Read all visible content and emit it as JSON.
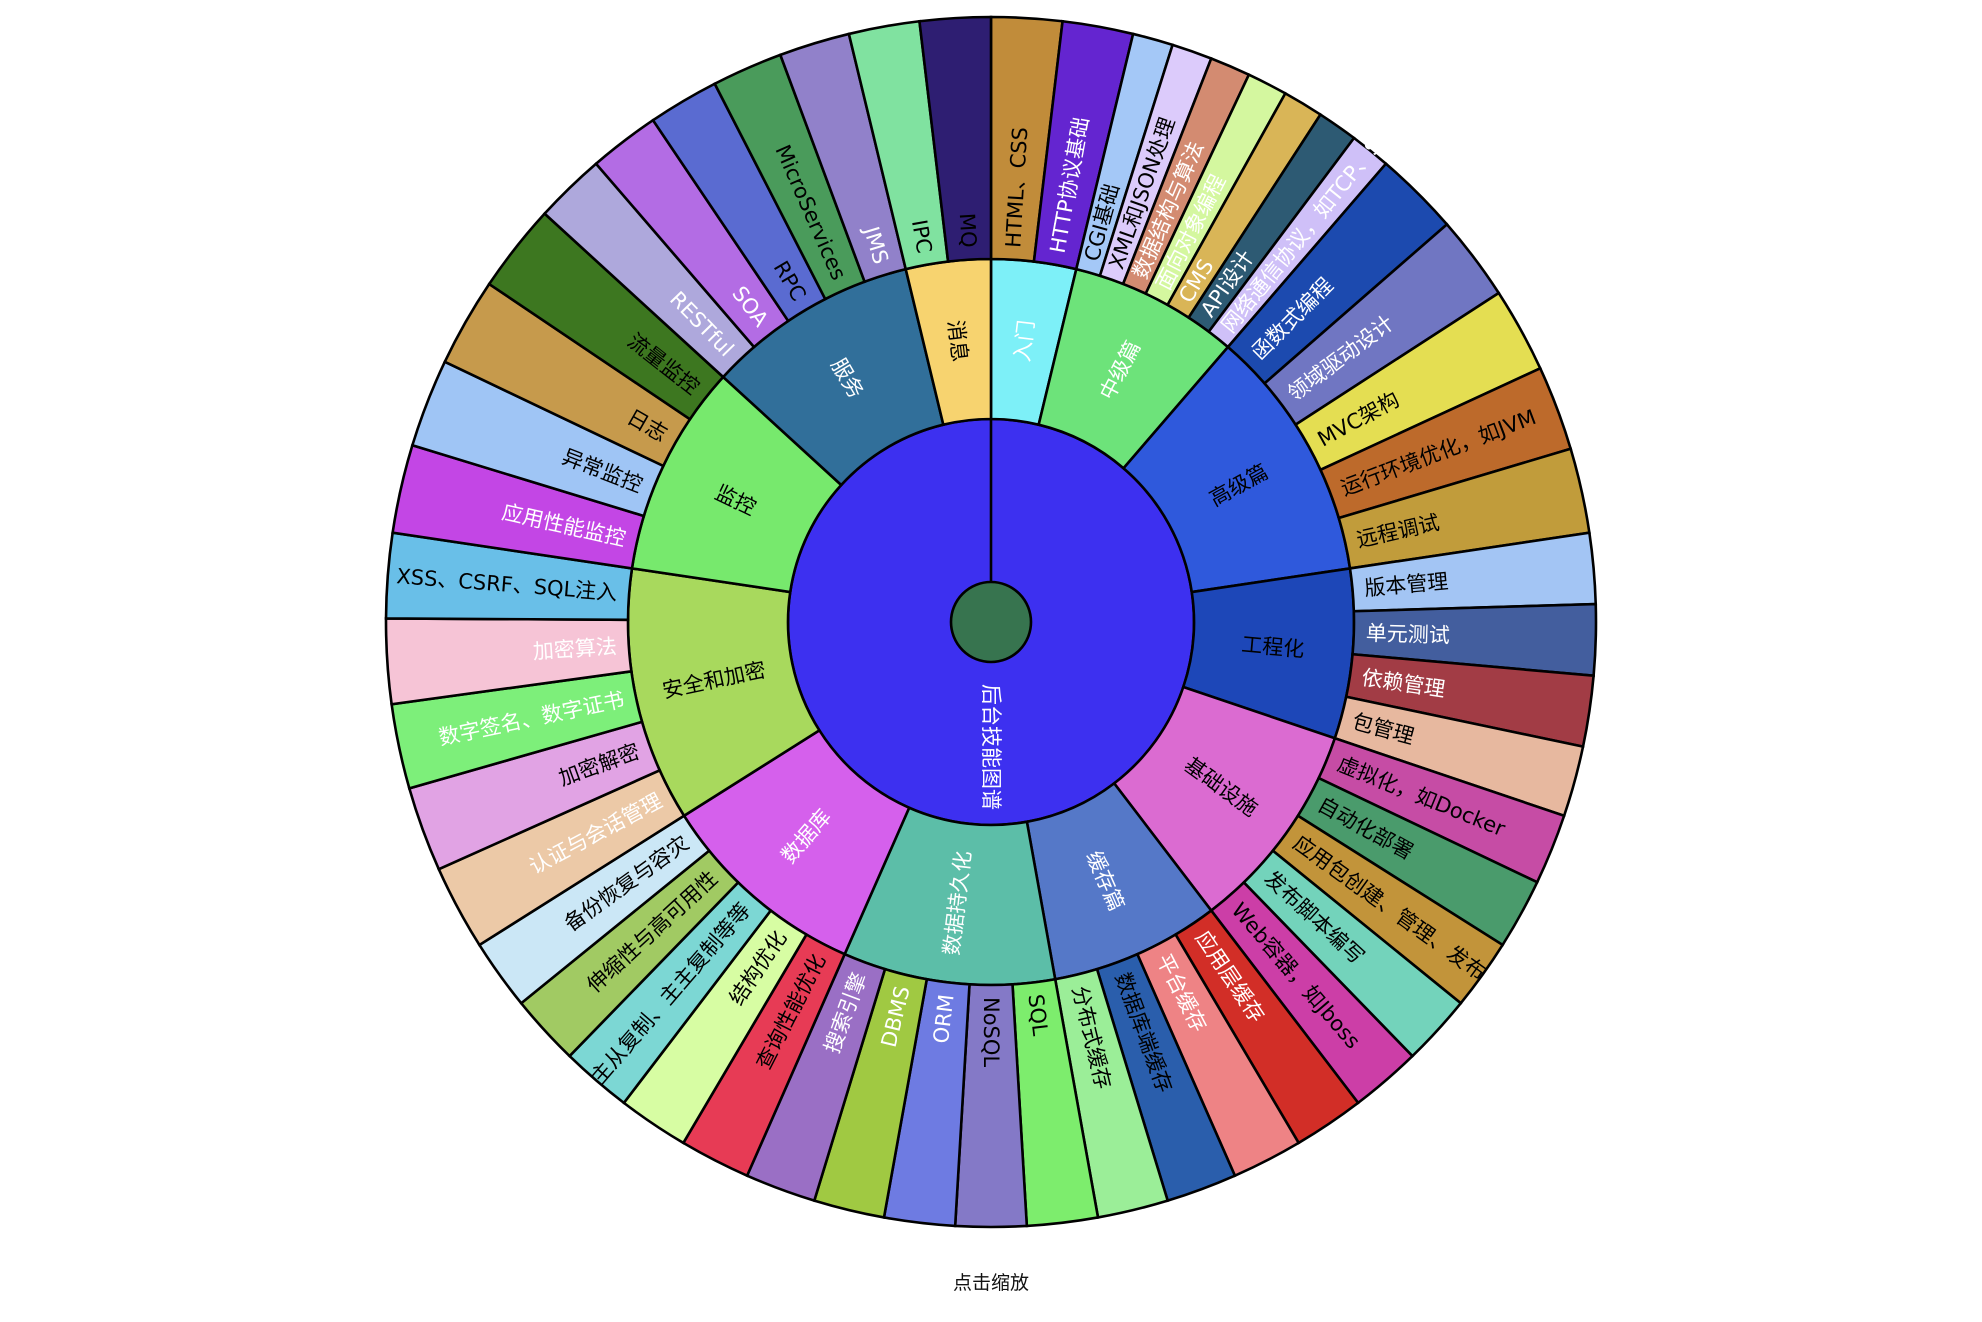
{
  "diagram": {
    "type": "sunburst",
    "root": "后台技能图谱",
    "root_color": "#3d30f0",
    "center_color": "#37744f",
    "rings": [
      {
        "label": "入门",
        "color": "#7df0f8",
        "text": "#ffffff",
        "span": 2.0,
        "children": [
          {
            "label": "HTML、CSS",
            "color": "#c18c3a",
            "text": "#000000"
          },
          {
            "label": "HTTP协议基础",
            "color": "#6425d0",
            "text": "#ffffff"
          }
        ]
      },
      {
        "label": "中级篇",
        "color": "#6de37a",
        "text": "#ffffff",
        "span": 4.0,
        "children": [
          {
            "label": "CGI基础",
            "color": "#a4c8f7",
            "text": "#000000"
          },
          {
            "label": "XML和JSON处理",
            "color": "#dccbfb",
            "text": "#000000"
          },
          {
            "label": "数据结构与算法",
            "color": "#d38b71",
            "text": "#ffffff"
          },
          {
            "label": "面向对象编程",
            "color": "#d4f79f",
            "text": "#ffffff"
          },
          {
            "label": "CMS",
            "color": "#d9b557",
            "text": "#ffffff"
          },
          {
            "label": "API设计",
            "color": "#2d5a73",
            "text": "#ffffff"
          },
          {
            "label": "网络通信协议，如TCP、Socket",
            "color": "#cfc0f8",
            "text": "#ffffff"
          }
        ]
      },
      {
        "label": "高级篇",
        "color": "#2f59dc",
        "text": "#000000",
        "span": 6.0,
        "children": [
          {
            "label": "函数式编程",
            "color": "#1c4aaf",
            "text": "#ffffff"
          },
          {
            "label": "领域驱动设计",
            "color": "#7076c2",
            "text": "#ffffff"
          },
          {
            "label": "MVC架构",
            "color": "#e4de52",
            "text": "#000000"
          },
          {
            "label": "运行环境优化，如JVM",
            "color": "#bd6a2b",
            "text": "#000000"
          },
          {
            "label": "远程调试",
            "color": "#c19c3b",
            "text": "#000000"
          }
        ]
      },
      {
        "label": "工程化",
        "color": "#1d47b8",
        "text": "#000000",
        "span": 4.0,
        "children": [
          {
            "label": "版本管理",
            "color": "#a3c5f4",
            "text": "#000000"
          },
          {
            "label": "单元测试",
            "color": "#435e9e",
            "text": "#ffffff"
          },
          {
            "label": "依赖管理",
            "color": "#a23c45",
            "text": "#ffffff"
          },
          {
            "label": "包管理",
            "color": "#e7b89f",
            "text": "#000000"
          }
        ]
      },
      {
        "label": "基础设施",
        "color": "#db6bd1",
        "text": "#000000",
        "span": 5.0,
        "children": [
          {
            "label": "虚拟化，如Docker",
            "color": "#c64ca5",
            "text": "#000000"
          },
          {
            "label": "自动化部署",
            "color": "#4a9b6c",
            "text": "#000000"
          },
          {
            "label": "应用包创建、管理、发布",
            "color": "#c2943a",
            "text": "#000000"
          },
          {
            "label": "发布脚本编写",
            "color": "#73d3bb",
            "text": "#000000"
          },
          {
            "label": "Web容器，如Jboss",
            "color": "#cc3ea7",
            "text": "#000000"
          }
        ]
      },
      {
        "label": "缓存篇",
        "color": "#5578c8",
        "text": "#ffffff",
        "span": 4.0,
        "children": [
          {
            "label": "应用层缓存",
            "color": "#d22e27",
            "text": "#ffffff"
          },
          {
            "label": "平台缓存",
            "color": "#ee8385",
            "text": "#ffffff"
          },
          {
            "label": "数据库端缓存",
            "color": "#2a5eac",
            "text": "#000000"
          },
          {
            "label": "分布式缓存",
            "color": "#9bee98",
            "text": "#000000"
          }
        ]
      },
      {
        "label": "数据持久化",
        "color": "#5cbea8",
        "text": "#ffffff",
        "span": 5.0,
        "children": [
          {
            "label": "SQL",
            "color": "#7ded6d",
            "text": "#000000"
          },
          {
            "label": "NoSQL",
            "color": "#8479c7",
            "text": "#000000"
          },
          {
            "label": "ORM",
            "color": "#6e7be2",
            "text": "#ffffff"
          },
          {
            "label": "DBMS",
            "color": "#a0c942",
            "text": "#ffffff"
          },
          {
            "label": "搜索引擎",
            "color": "#9a6fc5",
            "text": "#ffffff"
          }
        ]
      },
      {
        "label": "数据库",
        "color": "#d560ec",
        "text": "#ffffff",
        "span": 5.0,
        "children": [
          {
            "label": "查询性能优化",
            "color": "#e73b55",
            "text": "#000000"
          },
          {
            "label": "结构优化",
            "color": "#d7fda3",
            "text": "#000000"
          },
          {
            "label": "主从复制、主主复制等等",
            "color": "#7cd7d4",
            "text": "#000000"
          },
          {
            "label": "伸缩性与高可用性",
            "color": "#a1ca63",
            "text": "#000000"
          },
          {
            "label": "备份恢复与容灾",
            "color": "#cbe7f6",
            "text": "#000000"
          }
        ]
      },
      {
        "label": "安全和加密",
        "color": "#a8d95d",
        "text": "#000000",
        "span": 6.0,
        "children": [
          {
            "label": "认证与会话管理",
            "color": "#ecc9a7",
            "text": "#ffffff"
          },
          {
            "label": "加密解密",
            "color": "#e1a3e4",
            "text": "#000000"
          },
          {
            "label": "数字签名、数字证书",
            "color": "#7def7a",
            "text": "#ffffff"
          },
          {
            "label": "加密算法",
            "color": "#f6c4d6",
            "text": "#ffffff"
          },
          {
            "label": "XSS、CSRF、SQL注入",
            "color": "#69bfe8",
            "text": "#000000"
          }
        ]
      },
      {
        "label": "监控",
        "color": "#77e96d",
        "text": "#000000",
        "span": 5.0,
        "children": [
          {
            "label": "应用性能监控",
            "color": "#c346e5",
            "text": "#ffffff"
          },
          {
            "label": "异常监控",
            "color": "#9fc5f5",
            "text": "#000000"
          },
          {
            "label": "日志",
            "color": "#c69a4c",
            "text": "#000000"
          },
          {
            "label": "流量监控",
            "color": "#3d7720",
            "text": "#000000"
          }
        ]
      },
      {
        "label": "服务",
        "color": "#316f9a",
        "text": "#ffffff",
        "span": 5.0,
        "children": [
          {
            "label": "RESTful",
            "color": "#aea8dc",
            "text": "#ffffff"
          },
          {
            "label": "SOA",
            "color": "#b36ce4",
            "text": "#ffffff"
          },
          {
            "label": "RPC",
            "color": "#5a6bd1",
            "text": "#000000"
          },
          {
            "label": "MicroServices",
            "color": "#4a9b5b",
            "text": "#000000"
          },
          {
            "label": "JMS",
            "color": "#9181ca",
            "text": "#ffffff"
          }
        ]
      },
      {
        "label": "消息",
        "color": "#f7d36f",
        "text": "#000000",
        "span": 2.0,
        "children": [
          {
            "label": "IPC",
            "color": "#80e2a0",
            "text": "#000000"
          },
          {
            "label": "MQ",
            "color": "#2e1e72",
            "text": "#000000"
          }
        ]
      }
    ]
  },
  "footer": {
    "zoom_hint": "点击缩放"
  }
}
